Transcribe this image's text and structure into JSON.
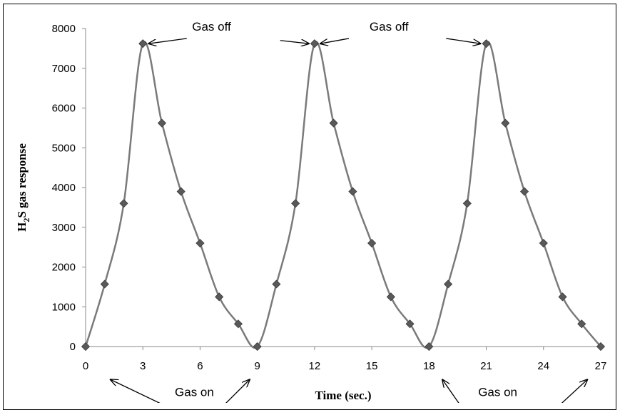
{
  "chart_data": {
    "type": "line",
    "title": "",
    "xlabel": "Time (sec.)",
    "ylabel": {
      "parts": [
        "H",
        "2",
        "S gas response"
      ]
    },
    "xlim": [
      0,
      27
    ],
    "ylim": [
      0,
      8000
    ],
    "x_ticks": [
      0,
      3,
      6,
      9,
      12,
      15,
      18,
      21,
      24,
      27
    ],
    "y_ticks": [
      0,
      1000,
      2000,
      3000,
      4000,
      5000,
      6000,
      7000,
      8000
    ],
    "grid": false,
    "legend": "none",
    "line_color": "#7a7a7a",
    "marker_color": "#595959",
    "marker": "diamond",
    "smooth": true,
    "series": [
      {
        "x": [
          0,
          1,
          2,
          3,
          4,
          5,
          6,
          7,
          8,
          9,
          10,
          11,
          12,
          13,
          14,
          15,
          16,
          17,
          18,
          19,
          20,
          21,
          22,
          23,
          24,
          25,
          26,
          27
        ],
        "values": [
          0,
          1570,
          3600,
          7620,
          5620,
          3900,
          2600,
          1250,
          570,
          0,
          1570,
          3600,
          7620,
          5620,
          3900,
          2600,
          1250,
          570,
          0,
          1570,
          3600,
          7620,
          5620,
          3900,
          2600,
          1250,
          570,
          0
        ]
      }
    ],
    "annotations": [
      {
        "text": "Gas off",
        "label_at": [
          6.6,
          7950
        ],
        "arrows": [
          [
            5.3,
            7750,
            3.3,
            7620
          ],
          [
            10.2,
            7700,
            11.7,
            7620
          ]
        ]
      },
      {
        "text": "Gas off",
        "label_at": [
          15.9,
          7950
        ],
        "arrows": [
          [
            18.9,
            7750,
            20.7,
            7620
          ],
          [
            13.8,
            7750,
            12.3,
            7620
          ]
        ]
      },
      {
        "text": "Gas on",
        "label_at": [
          5.7,
          -1250
        ],
        "arrows": [
          [
            4.0,
            -1450,
            1.3,
            -830
          ],
          [
            7.3,
            -1450,
            8.6,
            -830
          ]
        ]
      },
      {
        "text": "Gas on",
        "label_at": [
          21.6,
          -1250
        ],
        "arrows": [
          [
            19.6,
            -1450,
            18.7,
            -830
          ],
          [
            24.9,
            -1450,
            26.3,
            -830
          ]
        ]
      }
    ]
  }
}
